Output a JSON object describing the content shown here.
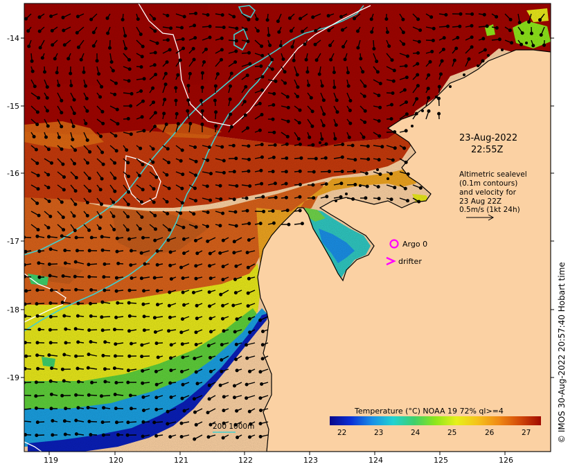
{
  "map": {
    "date": "23-Aug-2022",
    "time": "22:55Z",
    "altimetry_note": [
      "Altimetric sealevel",
      "(0.1m contours)",
      "and velocity for",
      "23 Aug 22Z",
      "0.5m/s (1kt 24h)"
    ],
    "argo_label": "Argo 0",
    "drifter_label": "drifter",
    "scale_label": "200  1000m",
    "credit": "© IMOS 30-Aug-2022 20:57:40 Hobart time",
    "lon_ticks": [
      "119",
      "120",
      "121",
      "122",
      "123",
      "124",
      "125",
      "126"
    ],
    "lat_ticks": [
      "-14",
      "-15",
      "-16",
      "-17",
      "-18",
      "-19"
    ],
    "colorbar": {
      "title": "Temperature (°C) NOAA 19 72% ql>=4",
      "ticks": [
        "22",
        "23",
        "24",
        "25",
        "26",
        "27"
      ],
      "stops": [
        "#08088a",
        "#0a2fd6",
        "#1a8fe6",
        "#22d2d2",
        "#3fcf6a",
        "#8ee61a",
        "#e6f01a",
        "#f5c21a",
        "#f08a14",
        "#d24a0a",
        "#a00a00"
      ]
    },
    "colors": {
      "land": "#fbd1a3",
      "argo": "#ff00ff",
      "drifter": "#ff00ff",
      "isobath": "#40d0d0",
      "contour": "#ffffff"
    }
  }
}
